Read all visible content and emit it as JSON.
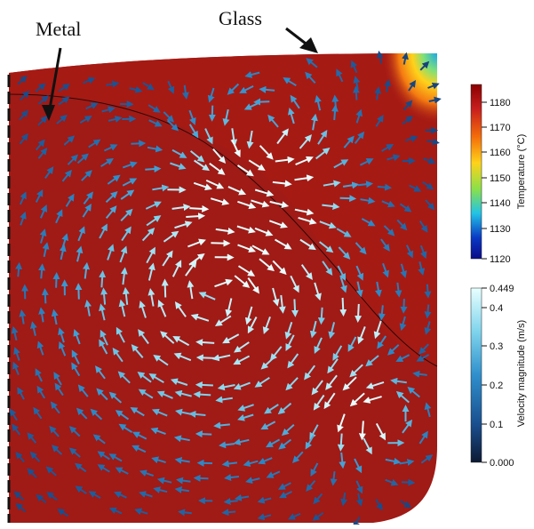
{
  "labels": {
    "metal": "Metal",
    "glass": "Glass"
  },
  "temperature_bar": {
    "title": "Temperature (°C)",
    "ticks": [
      "1180",
      "1170",
      "1160",
      "1150",
      "1140",
      "1130",
      "1120"
    ],
    "colors": [
      "#8b0000",
      "#c81e1e",
      "#f46d0a",
      "#ffd21a",
      "#8be04a",
      "#22c3e6",
      "#0a39c4",
      "#0a0a88"
    ]
  },
  "velocity_bar": {
    "title": "Velocity magnitude (m/s)",
    "ticks": [
      "0.449",
      "0.4",
      "0.3",
      "0.2",
      "0.1",
      "0.000"
    ],
    "colors": [
      "#e8ffff",
      "#7fd4ec",
      "#2f8fcc",
      "#1a4f8f",
      "#0d1a33"
    ]
  },
  "field_colors": {
    "metal": "#a01a16",
    "glass": "#a61a14",
    "corner_hot": "#ff9a14",
    "corner_cold": "#1ba8e8"
  }
}
